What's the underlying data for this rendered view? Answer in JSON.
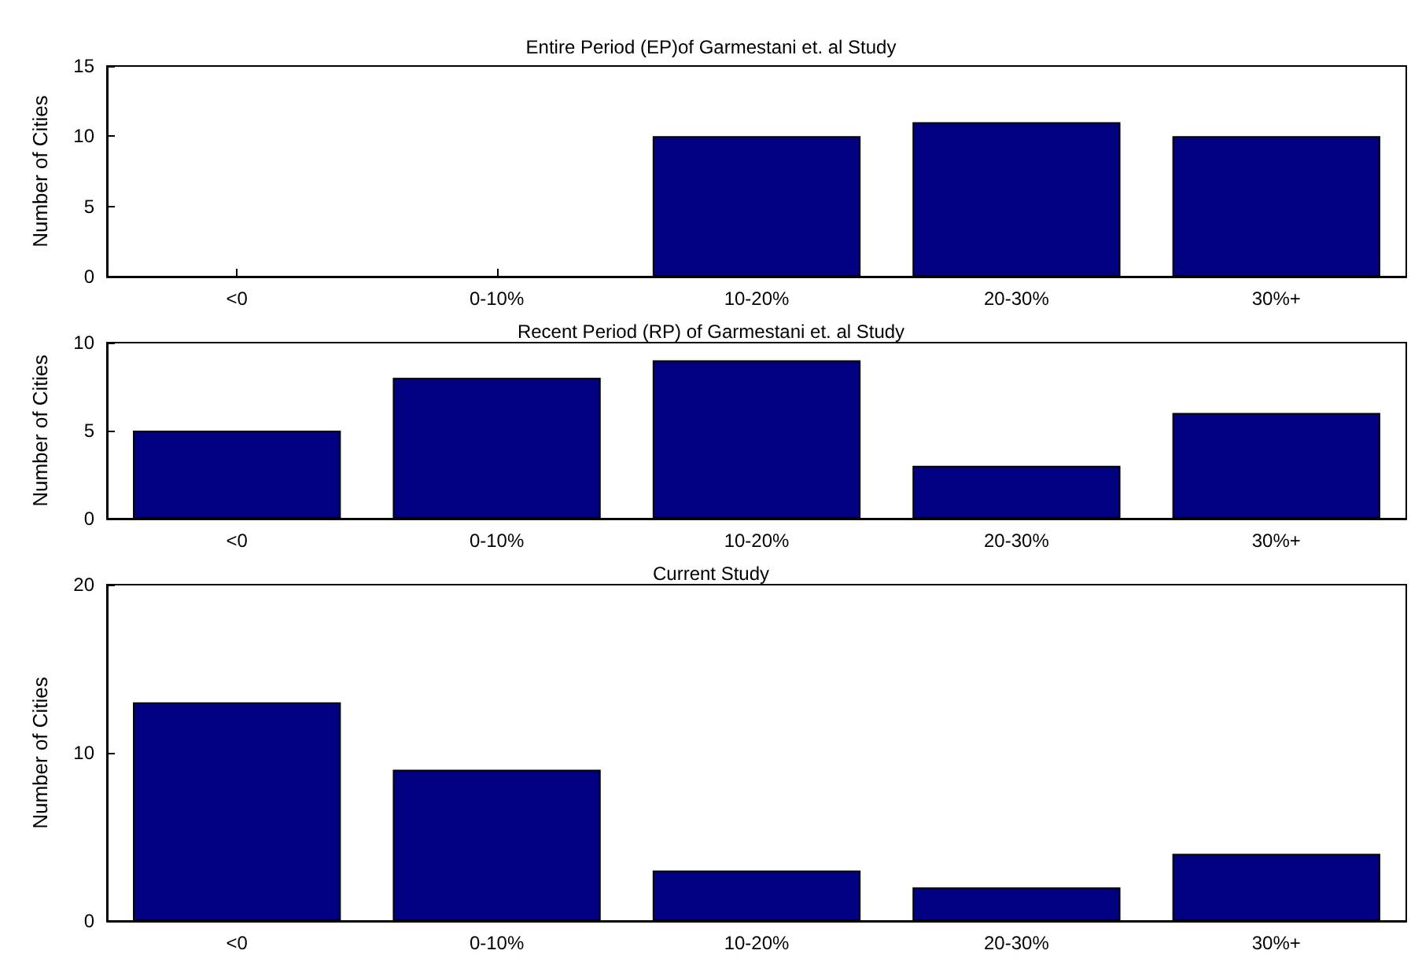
{
  "chart_data": [
    {
      "type": "bar",
      "title": "Entire Period (EP)of Garmestani et. al Study",
      "ylabel": "Number of Cities",
      "categories": [
        "<0",
        "0-10%",
        "10-20%",
        "20-30%",
        "30%+"
      ],
      "values": [
        0,
        0,
        10,
        11,
        10
      ],
      "color": "#000080",
      "ylim": [
        0,
        15
      ],
      "yticks": [
        0,
        5,
        10,
        15
      ],
      "grid": false
    },
    {
      "type": "bar",
      "title": "Recent Period (RP) of Garmestani et. al Study",
      "ylabel": "Number of Cities",
      "categories": [
        "<0",
        "0-10%",
        "10-20%",
        "20-30%",
        "30%+"
      ],
      "values": [
        5,
        8,
        9,
        3,
        6
      ],
      "color": "#000080",
      "ylim": [
        0,
        10
      ],
      "yticks": [
        0,
        5,
        10
      ],
      "grid": false
    },
    {
      "type": "bar",
      "title": "Current Study",
      "ylabel": "Number of Cities",
      "categories": [
        "<0",
        "0-10%",
        "10-20%",
        "20-30%",
        "30%+"
      ],
      "values": [
        13,
        9,
        3,
        2,
        4
      ],
      "color": "#000080",
      "ylim": [
        0,
        20
      ],
      "yticks": [
        0,
        10,
        20
      ],
      "grid": false
    }
  ]
}
